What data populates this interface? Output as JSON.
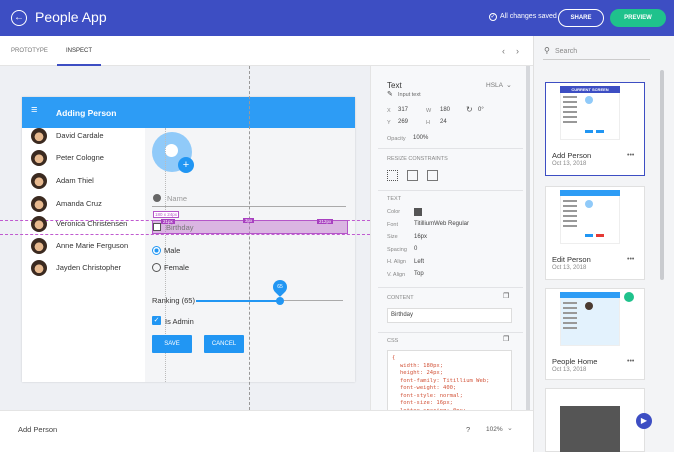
{
  "header": {
    "app_title": "People App",
    "status": "All changes saved",
    "share": "SHARE",
    "preview": "PREVIEW"
  },
  "tabs": [
    "PROTOTYPE",
    "INSPECT"
  ],
  "search": "Search",
  "artboard": {
    "title": "Adding Person",
    "people": [
      "David Cardale",
      "Peter Cologne",
      "Adam Thiel",
      "Amanda Cruz",
      "Veronica Christensen",
      "Anne Marie Ferguson",
      "Jayden Christopher"
    ],
    "name_placeholder": "Name",
    "birthday_placeholder": "Birthday",
    "genders": [
      "Male",
      "Female"
    ],
    "ranking": "Ranking (65)",
    "slider_value": "65",
    "admin": "Is Admin",
    "save": "SAVE",
    "cancel": "CANCEL",
    "measures": [
      "180 x 24px",
      "21px",
      "3px",
      "212px"
    ]
  },
  "inspect": {
    "title": "Text",
    "color_mode": "HSLA",
    "layer": "Input text",
    "x_label": "X",
    "x": 317,
    "w_label": "W",
    "w": 180,
    "rotation": "0°",
    "y_label": "Y",
    "y": 269,
    "h_label": "H",
    "h": 24,
    "opacity_label": "Opacity",
    "opacity": "100%",
    "resize_title": "RESIZE CONSTRAINTS",
    "text_title": "TEXT",
    "text_props": [
      {
        "label": "Color"
      },
      {
        "label": "Font",
        "value": "TitilliumWeb Regular"
      },
      {
        "label": "Size",
        "value": "16px"
      },
      {
        "label": "Spacing",
        "value": "0"
      },
      {
        "label": "H. Align",
        "value": "Left"
      },
      {
        "label": "V. Align",
        "value": "Top"
      }
    ],
    "content_title": "CONTENT",
    "content": "Birthday",
    "css_title": "CSS",
    "css": [
      "{",
      "width: 180px;",
      "height: 24px;",
      "font-family: Titillium Web;",
      "font-weight: 400;",
      "font-style: normal;",
      "font-size: 16px;",
      "letter-spacing: 0px;"
    ]
  },
  "screens": {
    "current_label": "CURRENT SCREEN",
    "items": [
      {
        "name": "Add Person",
        "date": "Oct 13, 2018"
      },
      {
        "name": "Edit Person",
        "date": "Oct 13, 2018"
      },
      {
        "name": "People Home",
        "date": "Oct 13, 2018"
      }
    ]
  },
  "footer": {
    "screen": "Add Person",
    "help": "?",
    "zoom": "102%"
  }
}
